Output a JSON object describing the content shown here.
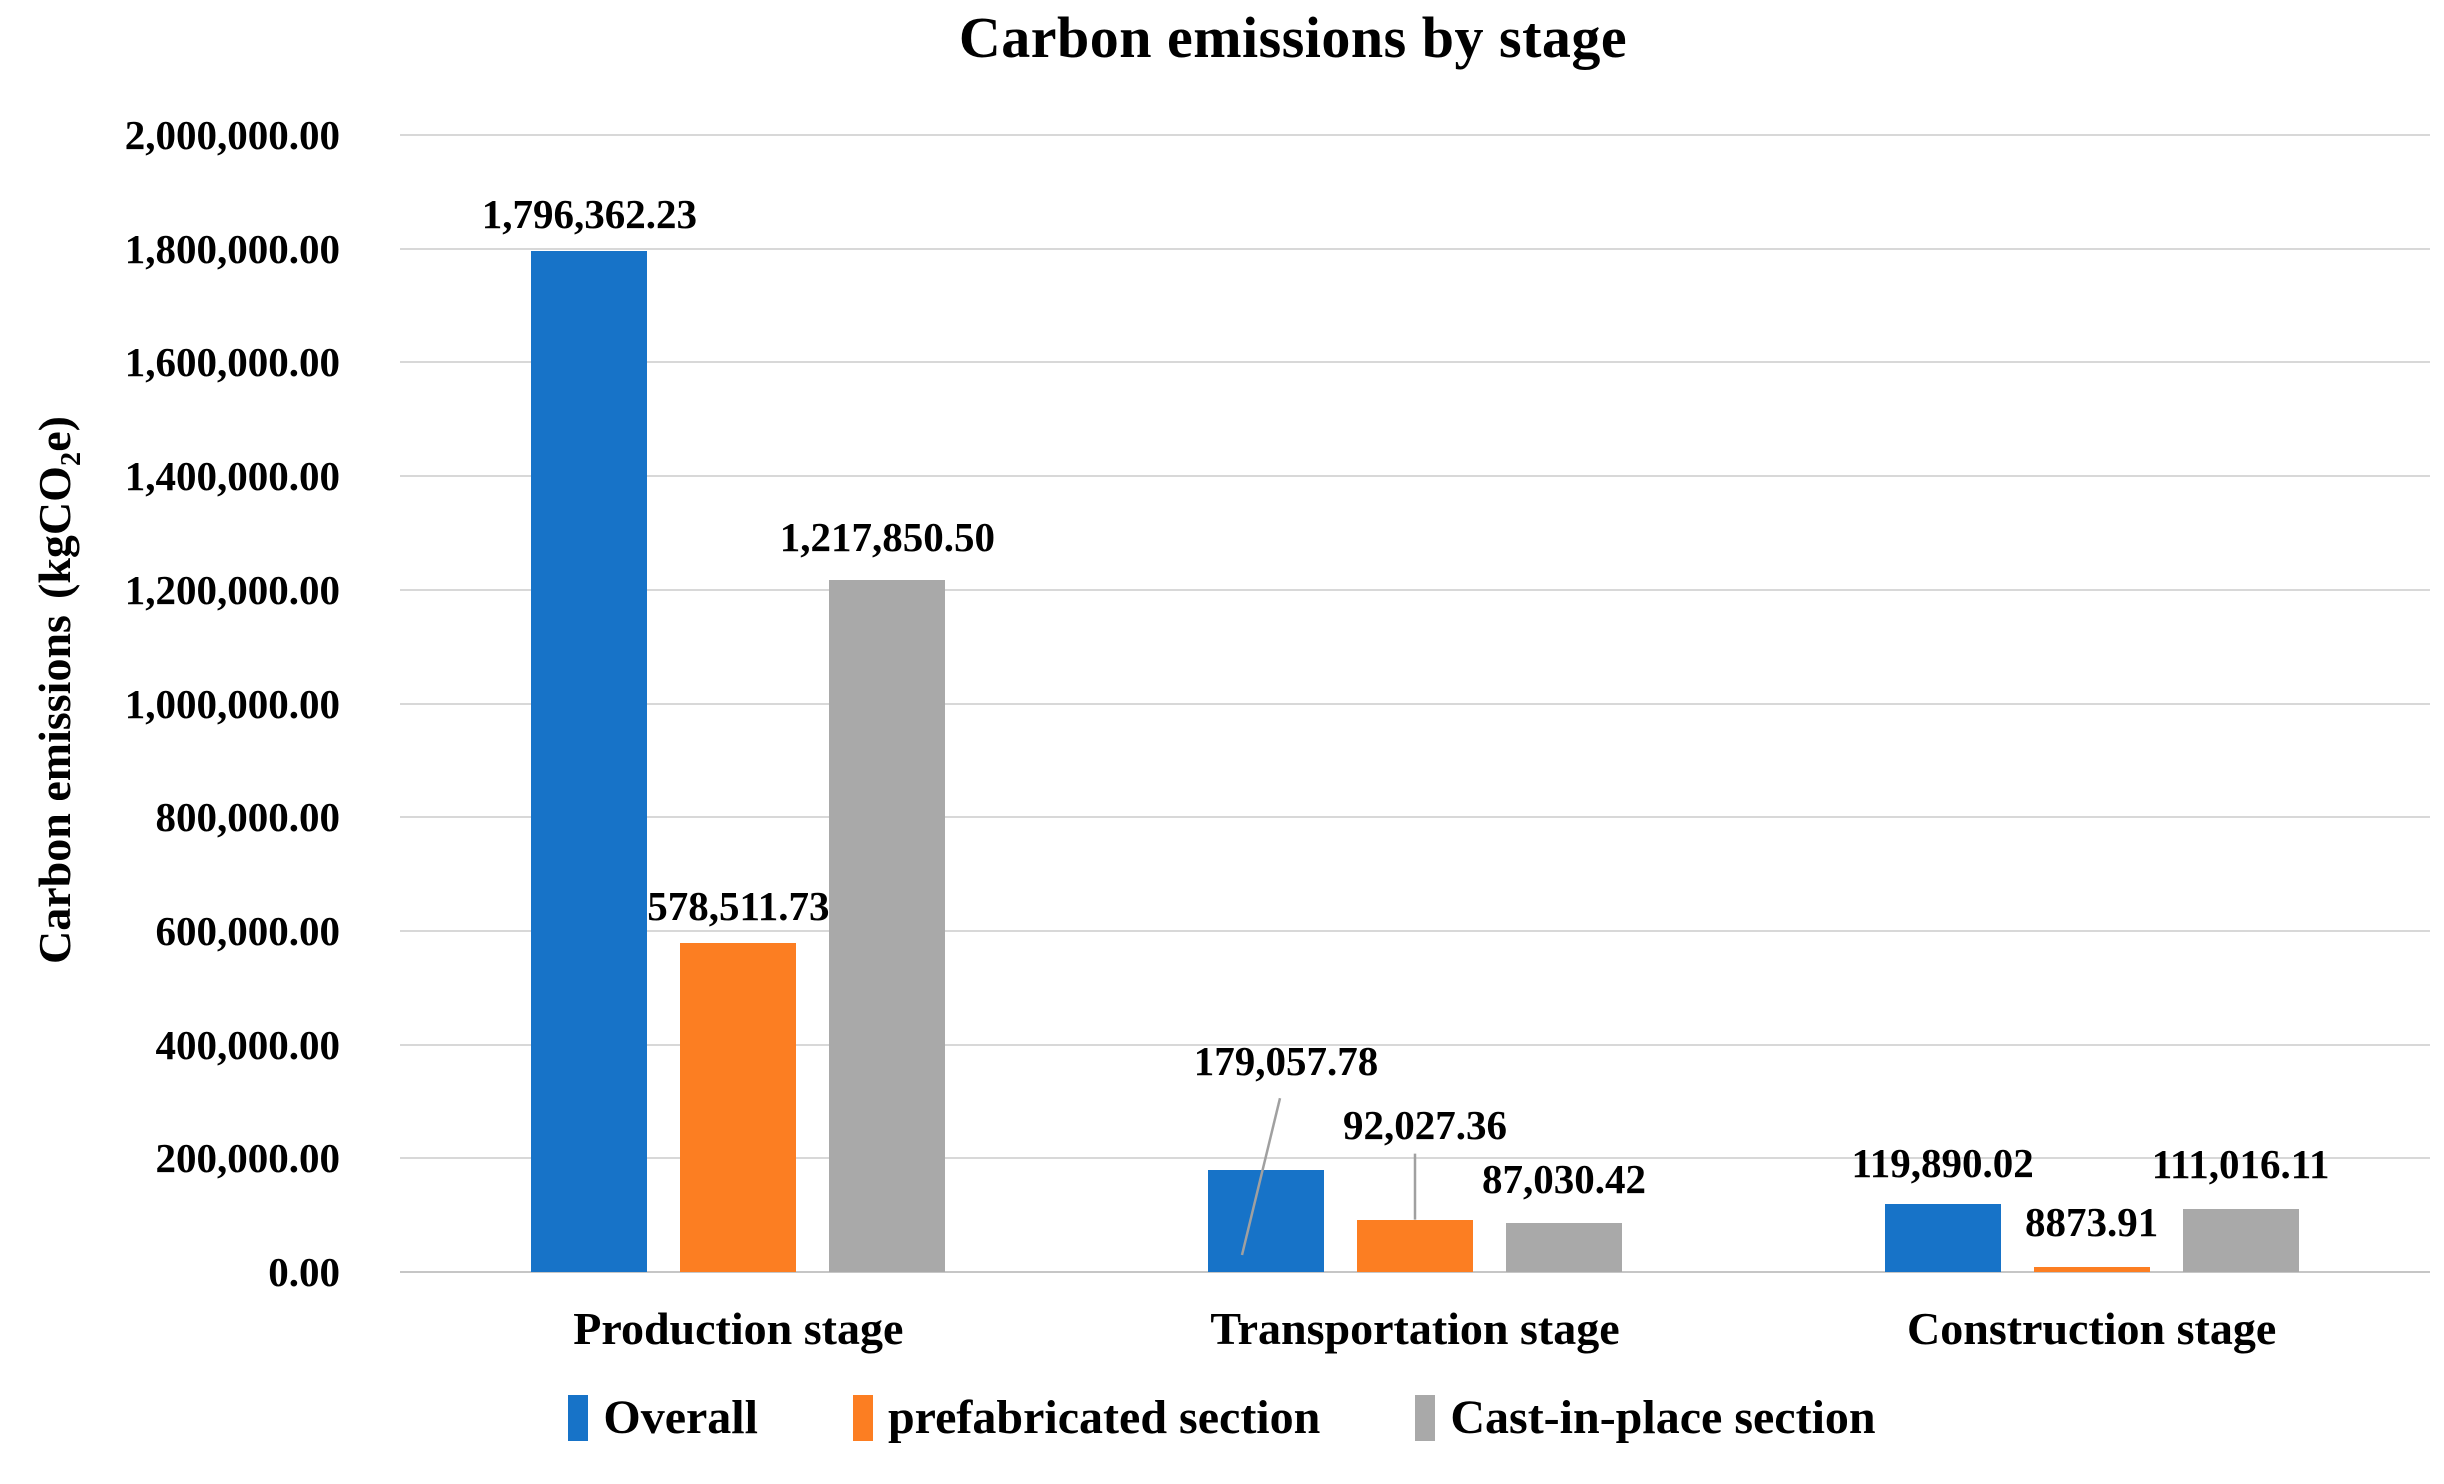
{
  "chart_data": {
    "type": "bar",
    "title": "Carbon emissions by stage",
    "ylabel": "Carbon emissions (kgCO2e)",
    "ylabel_parts": {
      "text": "Carbon emissions",
      "unit_pre": "(kgCO",
      "unit_sub": "2",
      "unit_post": "e)"
    },
    "xlabel": "",
    "categories": [
      "Production stage",
      "Transportation stage",
      "Construction stage"
    ],
    "series": [
      {
        "name": "Overall",
        "color": "#1773C8",
        "values": [
          1796362.23,
          179057.78,
          119890.02
        ],
        "labels": [
          "1,796,362.23",
          "179,057.78",
          "119,890.02"
        ]
      },
      {
        "name": "prefabricated section",
        "color": "#FC7E22",
        "values": [
          578511.73,
          92027.36,
          8873.91
        ],
        "labels": [
          "578,511.73",
          "92,027.36",
          "8873.91"
        ]
      },
      {
        "name": "Cast-in-place section",
        "color": "#A9A9A9",
        "values": [
          1217850.5,
          87030.42,
          111016.11
        ],
        "labels": [
          "1,217,850.50",
          "87,030.42",
          "111,016.11"
        ]
      }
    ],
    "y_axis": {
      "min": 0,
      "max": 2000000,
      "step": 200000,
      "tick_labels": [
        "0.00",
        "200,000.00",
        "400,000.00",
        "600,000.00",
        "800,000.00",
        "1,000,000.00",
        "1,200,000.00",
        "1,400,000.00",
        "1,600,000.00",
        "1,800,000.00",
        "2,000,000.00"
      ]
    },
    "grid": true,
    "legend_position": "bottom",
    "label_layout": {
      "default_gap": 14,
      "overrides": {
        "0-1": {
          "dx": 20,
          "gap": 86,
          "leader": "diagonal"
        },
        "1-1": {
          "dx": 10,
          "gap": 72,
          "leader": "vertical"
        },
        "2-0": {
          "gap": 20
        },
        "2-1": {
          "gap": 20
        },
        "0-2": {
          "gap": 18
        },
        "1-2": {
          "gap": 22
        },
        "2-2": {
          "gap": 22
        }
      }
    }
  }
}
